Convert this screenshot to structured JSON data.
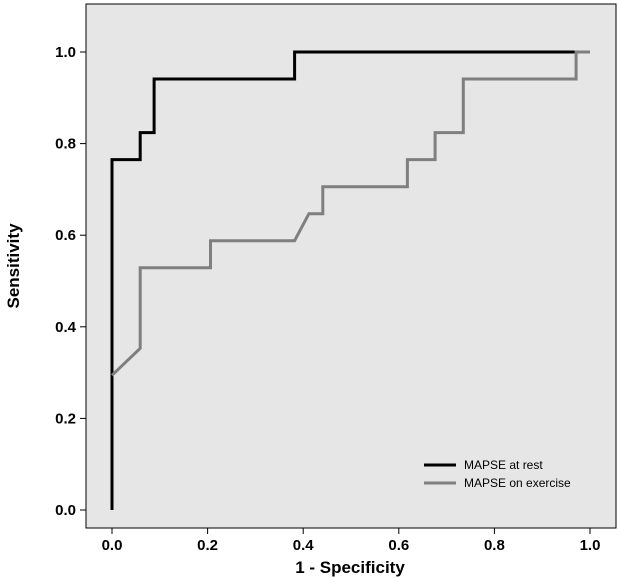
{
  "chart_data": {
    "type": "line",
    "xlabel": "1 - Specificity",
    "ylabel": "Sensitivity",
    "xlim": [
      0,
      1
    ],
    "ylim": [
      0,
      1
    ],
    "xticks": [
      "0.0",
      "0.2",
      "0.4",
      "0.6",
      "0.8",
      "1.0"
    ],
    "yticks": [
      "0.0",
      "0.2",
      "0.4",
      "0.6",
      "0.8",
      "1.0"
    ],
    "grid": false,
    "background_color": "#e6e6e6",
    "legend": {
      "position": "bottom-right"
    },
    "series": [
      {
        "name": "MAPSE at rest",
        "color": "#000000",
        "points": [
          [
            0,
            0
          ],
          [
            0,
            0.765
          ],
          [
            0.059,
            0.765
          ],
          [
            0.059,
            0.824
          ],
          [
            0.088,
            0.824
          ],
          [
            0.088,
            0.941
          ],
          [
            0.382,
            0.941
          ],
          [
            0.382,
            1.0
          ],
          [
            0.971,
            1.0
          ],
          [
            1.0,
            1.0
          ]
        ]
      },
      {
        "name": "MAPSE on exercise",
        "color": "#7f7f7f",
        "points": [
          [
            0,
            0.294
          ],
          [
            0.059,
            0.353
          ],
          [
            0.059,
            0.529
          ],
          [
            0.206,
            0.529
          ],
          [
            0.206,
            0.588
          ],
          [
            0.382,
            0.588
          ],
          [
            0.412,
            0.647
          ],
          [
            0.441,
            0.647
          ],
          [
            0.441,
            0.706
          ],
          [
            0.618,
            0.706
          ],
          [
            0.618,
            0.765
          ],
          [
            0.676,
            0.765
          ],
          [
            0.676,
            0.824
          ],
          [
            0.735,
            0.824
          ],
          [
            0.735,
            0.941
          ],
          [
            0.971,
            0.941
          ],
          [
            0.971,
            1.0
          ],
          [
            1.0,
            1.0
          ]
        ]
      }
    ]
  }
}
